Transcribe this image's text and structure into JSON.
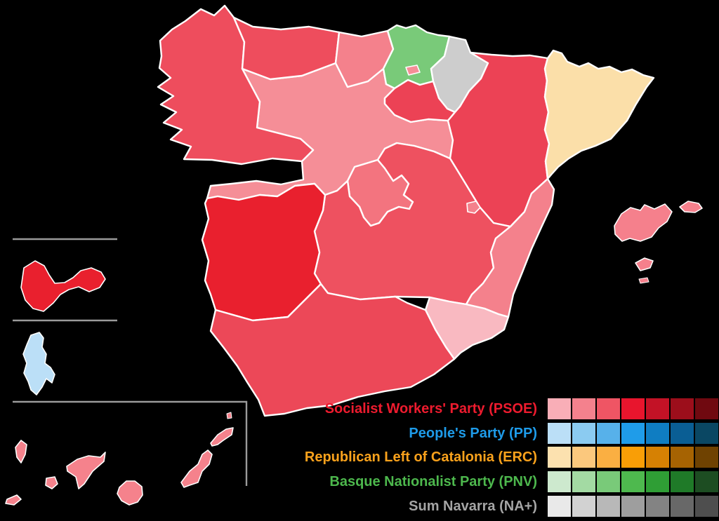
{
  "background_color": "#000000",
  "map": {
    "description": "Choropleth map of Spain by autonomous community, shaded by winning party",
    "border_color": "#FFFFFF",
    "inset_line_color": "#9A9A9A",
    "regions": [
      {
        "id": "galicia",
        "name": "Galicia",
        "party": "PSOE",
        "fill": "#EE4D5D"
      },
      {
        "id": "asturias",
        "name": "Asturias",
        "party": "PSOE",
        "fill": "#EE4D5D"
      },
      {
        "id": "cantabria",
        "name": "Cantabria",
        "party": "PSOE",
        "fill": "#F4818C"
      },
      {
        "id": "basque-country",
        "name": "Basque Country",
        "party": "PNV",
        "fill": "#79CA79"
      },
      {
        "id": "trevino-enclave",
        "name": "Trevino enclave",
        "party": "PSOE",
        "fill": "#F58E97"
      },
      {
        "id": "navarre",
        "name": "Navarre",
        "party": "NA+",
        "fill": "#CDCDCD"
      },
      {
        "id": "la-rioja",
        "name": "La Rioja",
        "party": "PSOE",
        "fill": "#EC4255"
      },
      {
        "id": "aragon",
        "name": "Aragon",
        "party": "PSOE",
        "fill": "#EC4255"
      },
      {
        "id": "catalonia",
        "name": "Catalonia",
        "party": "ERC",
        "fill": "#FBDFA9"
      },
      {
        "id": "castile-and-leon",
        "name": "Castile and Leon",
        "party": "PSOE",
        "fill": "#F58E97"
      },
      {
        "id": "madrid",
        "name": "Community of Madrid",
        "party": "PSOE",
        "fill": "#F3747F"
      },
      {
        "id": "castilla-la-mancha",
        "name": "Castilla-La Mancha",
        "party": "PSOE",
        "fill": "#EE5160"
      },
      {
        "id": "extremadura",
        "name": "Extremadura",
        "party": "PSOE",
        "fill": "#E9202E"
      },
      {
        "id": "valencia",
        "name": "Valencian Community",
        "party": "PSOE",
        "fill": "#F4818C"
      },
      {
        "id": "murcia",
        "name": "Region of Murcia",
        "party": "PSOE",
        "fill": "#F9B9C1"
      },
      {
        "id": "andalusia",
        "name": "Andalusia",
        "party": "PSOE",
        "fill": "#EC4858"
      },
      {
        "id": "balearic-islands",
        "name": "Balearic Islands",
        "party": "PSOE",
        "fill": "#F5808C"
      },
      {
        "id": "canary-islands",
        "name": "Canary Islands",
        "party": "PSOE",
        "fill": "#F5828C"
      },
      {
        "id": "ceuta",
        "name": "Ceuta",
        "party": "PSOE",
        "fill": "#E9202E"
      },
      {
        "id": "melilla",
        "name": "Melilla",
        "party": "PP",
        "fill": "#BBDFF7"
      }
    ]
  },
  "legend": {
    "parties": [
      {
        "id": "psoe",
        "label": "Socialist Workers' Party (PSOE)",
        "text_color": "#ED1B2E",
        "shades": [
          "#F9AEB7",
          "#F4818D",
          "#EF5564",
          "#E8152D",
          "#C31226",
          "#9C0E1B",
          "#700910"
        ]
      },
      {
        "id": "pp",
        "label": "People's Party (PP)",
        "text_color": "#1E9BE9",
        "shades": [
          "#BBDFF7",
          "#8BCBF1",
          "#57B1EA",
          "#1F9CE9",
          "#0F7DC2",
          "#0A5E94",
          "#0A4763"
        ]
      },
      {
        "id": "erc",
        "label": "Republican Left of Catalonia (ERC)",
        "text_color": "#FAA21C",
        "shades": [
          "#FCE1AF",
          "#FBC87D",
          "#FAAF42",
          "#F99E06",
          "#D68103",
          "#A66302",
          "#6F4201"
        ]
      },
      {
        "id": "pnv",
        "label": "Basque Nationalist Party (PNV)",
        "text_color": "#4DB84D",
        "shades": [
          "#CDE9CE",
          "#A3DAA3",
          "#79CA79",
          "#4EB94E",
          "#2F9E35",
          "#1F7A28",
          "#1D4D22"
        ]
      },
      {
        "id": "naplus",
        "label": "Sum Navarra (NA+)",
        "text_color": "#A5A5A5",
        "shades": [
          "#E9E9E9",
          "#D2D2D2",
          "#B8B8B8",
          "#9E9E9E",
          "#838383",
          "#686868",
          "#4E4E4E"
        ]
      }
    ]
  }
}
